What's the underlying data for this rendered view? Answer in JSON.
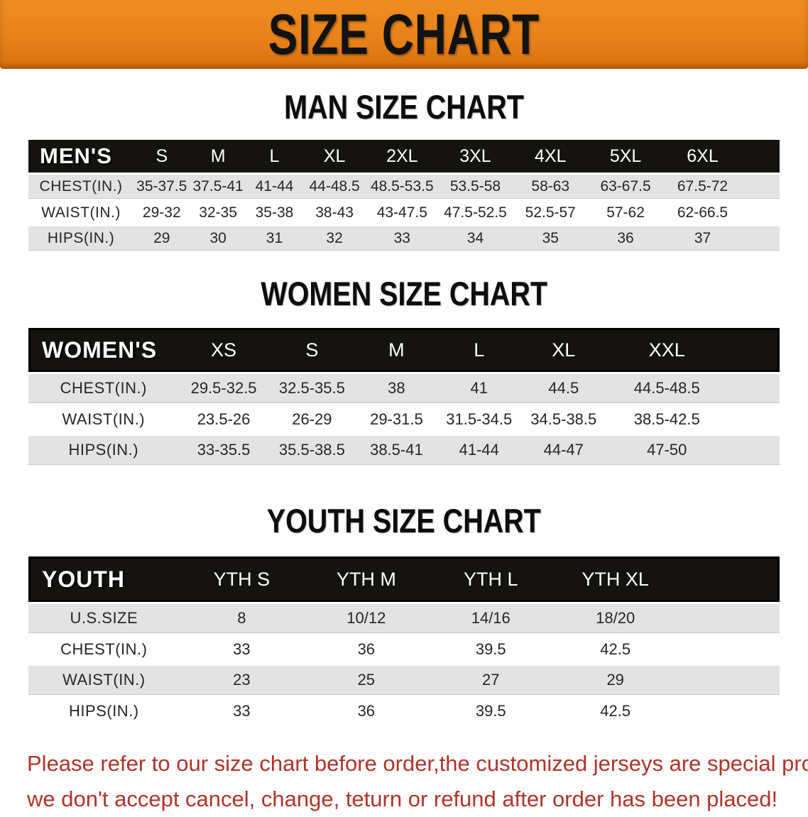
{
  "banner": {
    "title": "SIZE CHART",
    "bg_color": "#E8821A",
    "text_color": "#121212"
  },
  "sections": [
    {
      "heading": "MAN SIZE CHART",
      "header_label": "MEN'S",
      "columns": [
        "S",
        "M",
        "L",
        "XL",
        "2XL",
        "3XL",
        "4XL",
        "5XL",
        "6XL"
      ],
      "rows": [
        {
          "label": "CHEST(IN.)",
          "values": [
            "35-37.5",
            "37.5-41",
            "41-44",
            "44-48.5",
            "48.5-53.5",
            "53.5-58",
            "58-63",
            "63-67.5",
            "67.5-72"
          ]
        },
        {
          "label": "WAIST(IN.)",
          "values": [
            "29-32",
            "32-35",
            "35-38",
            "38-43",
            "43-47.5",
            "47.5-52.5",
            "52.5-57",
            "57-62",
            "62-66.5"
          ]
        },
        {
          "label": "HIPS(IN.)",
          "values": [
            "29",
            "30",
            "31",
            "32",
            "33",
            "34",
            "35",
            "36",
            "37"
          ]
        }
      ]
    },
    {
      "heading": "WOMEN SIZE CHART",
      "header_label": "WOMEN'S",
      "columns": [
        "XS",
        "S",
        "M",
        "L",
        "XL",
        "XXL"
      ],
      "rows": [
        {
          "label": "CHEST(IN.)",
          "values": [
            "29.5-32.5",
            "32.5-35.5",
            "38",
            "41",
            "44.5",
            "44.5-48.5"
          ]
        },
        {
          "label": "WAIST(IN.)",
          "values": [
            "23.5-26",
            "26-29",
            "29-31.5",
            "31.5-34.5",
            "34.5-38.5",
            "38.5-42.5"
          ]
        },
        {
          "label": "HIPS(IN.)",
          "values": [
            "33-35.5",
            "35.5-38.5",
            "38.5-41",
            "41-44",
            "44-47",
            "47-50"
          ]
        }
      ]
    },
    {
      "heading": "YOUTH SIZE CHART",
      "header_label": "YOUTH",
      "columns": [
        "YTH S",
        "YTH M",
        "YTH L",
        "YTH XL"
      ],
      "rows": [
        {
          "label": "U.S.SIZE",
          "values": [
            "8",
            "10/12",
            "14/16",
            "18/20"
          ]
        },
        {
          "label": "CHEST(IN.)",
          "values": [
            "33",
            "36",
            "39.5",
            "42.5"
          ]
        },
        {
          "label": "WAIST(IN.)",
          "values": [
            "23",
            "25",
            "27",
            "29"
          ]
        },
        {
          "label": "HIPS(IN.)",
          "values": [
            "33",
            "36",
            "39.5",
            "42.5"
          ]
        }
      ]
    }
  ],
  "footer": {
    "line1": "Please refer to our size chart before order,the customized jerseys are special products,",
    "line2": "we don't accept cancel, change, teturn or refund after order has been placed!",
    "text_color": "#B0342A"
  }
}
